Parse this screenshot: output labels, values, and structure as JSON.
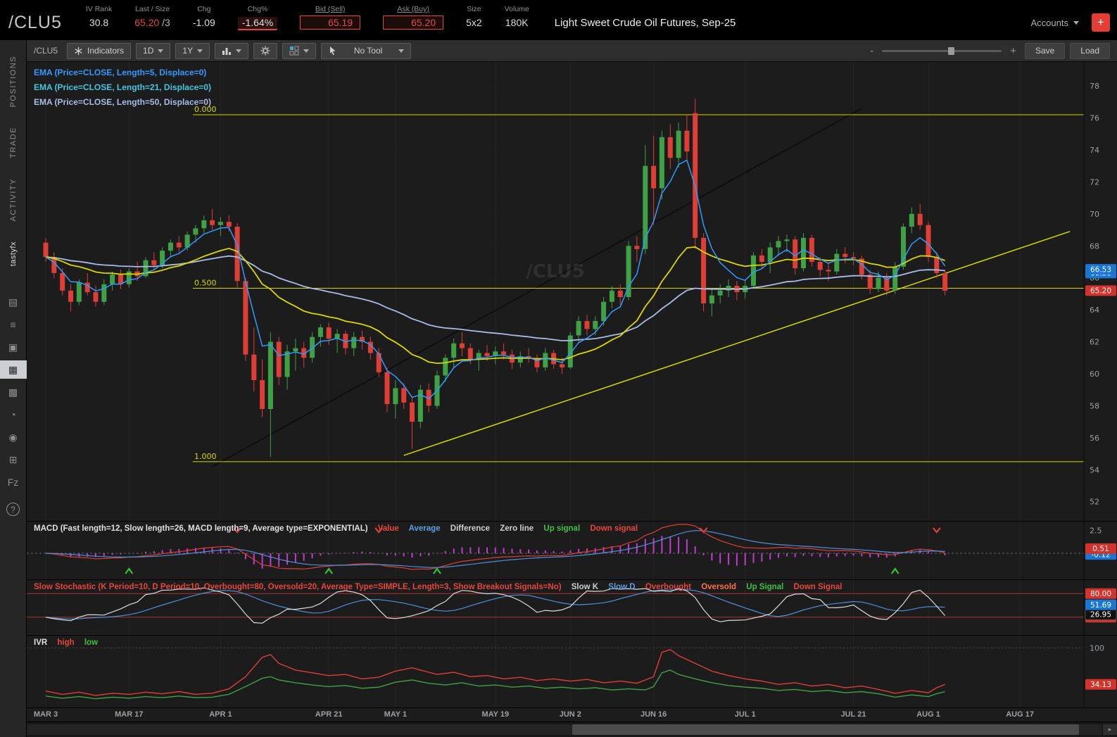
{
  "header": {
    "symbol": "/CLU5",
    "iv_rank": {
      "label": "IV Rank",
      "value": "30.8"
    },
    "last": {
      "label": "Last / Size",
      "value": "65.20",
      "size": " /3"
    },
    "chg": {
      "label": "Chg",
      "value": "-1.09"
    },
    "chg_pct": {
      "label": "Chg%",
      "value": "-1.64%"
    },
    "bid": {
      "label": "Bid (Sell)",
      "value": "65.19"
    },
    "ask": {
      "label": "Ask (Buy)",
      "value": "65.20"
    },
    "size": {
      "label": "Size",
      "value": "5x2"
    },
    "volume": {
      "label": "Volume",
      "value": "180K"
    },
    "description": "Light Sweet Crude Oil Futures, Sep-25",
    "accounts_label": "Accounts",
    "add_button": "+"
  },
  "sidebar": {
    "tabs": [
      {
        "label": "POSITIONS",
        "name": "tab-positions"
      },
      {
        "label": "TRADE",
        "name": "tab-trade"
      },
      {
        "label": "ACTIVITY",
        "name": "tab-activity"
      },
      {
        "label": "tastyfx",
        "name": "tab-tastyfx"
      }
    ],
    "icons": [
      {
        "glyph": "▤",
        "name": "watchlist-icon",
        "active": false
      },
      {
        "glyph": "≡",
        "name": "orders-icon",
        "active": false
      },
      {
        "glyph": "▣",
        "name": "journal-icon",
        "active": false
      },
      {
        "glyph": "▦",
        "name": "chart-icon",
        "active": true
      },
      {
        "glyph": "▩",
        "name": "layout-icon",
        "active": false
      },
      {
        "glyph": "◔",
        "name": "history-icon",
        "active": false
      },
      {
        "glyph": "◉",
        "name": "follow-traders-icon",
        "active": false
      },
      {
        "glyph": "⊞",
        "name": "calendar-icon",
        "active": false
      },
      {
        "glyph": "Fz",
        "name": "futures-icon",
        "active": false
      }
    ],
    "help_label": "?"
  },
  "toolbar": {
    "symbol": "/CLU5",
    "indicators_label": "Indicators",
    "timeframe": "1D",
    "range": "1Y",
    "tool_label": "No Tool",
    "zoom_minus": "-",
    "zoom_plus": "+",
    "save_label": "Save",
    "load_label": "Load"
  },
  "chart": {
    "ema_labels": [
      "EMA (Price=CLOSE, Length=5, Displace=0)",
      "EMA (Price=CLOSE, Length=21, Displace=0)",
      "EMA (Price=CLOSE, Length=50, Displace=0)"
    ],
    "watermark": "/CLU5",
    "y_ticks": [
      78,
      76,
      74,
      72,
      70,
      68,
      66,
      64,
      62,
      60,
      58,
      56,
      54,
      52
    ],
    "price_badges": [
      {
        "text": "66.30",
        "value": 66.3,
        "color": "blue"
      },
      {
        "text": "66.53",
        "value": 66.53,
        "color": "blue"
      },
      {
        "text": "65.20",
        "value": 65.2,
        "color": "red"
      }
    ]
  },
  "macd": {
    "label": "MACD (Fast length=12, Slow length=26, MACD length=9, Average type=EXPONENTIAL)",
    "legend": {
      "value": "Value",
      "average": "Average",
      "difference": "Difference",
      "zero": "Zero line",
      "up": "Up signal",
      "down": "Down signal"
    },
    "tick": "2.5",
    "badges": [
      {
        "text": "-0.12",
        "value": -0.12,
        "color": "blue"
      },
      {
        "text": "0.51",
        "value": 0.51,
        "color": "red"
      }
    ],
    "up_signals": [
      10,
      34,
      47,
      102
    ],
    "down_signals": [
      23,
      40,
      79,
      107
    ]
  },
  "stoch": {
    "label": "Slow Stochastic (K Period=10, D Period=10, Overbought=80, Oversold=20, Average Type=SIMPLE, Length=3, Show Breakout Signals=No)",
    "legend": {
      "k": "Slow K",
      "d": "Slow D",
      "overbought": "Overbought",
      "oversold": "Oversold",
      "up": "Up Signal",
      "down": "Down Signal"
    },
    "overbought": 80,
    "oversold": 20,
    "badges": [
      {
        "text": "20.00",
        "value": 20,
        "color": "red"
      },
      {
        "text": "26.95",
        "value": 26.95,
        "color": "dark"
      },
      {
        "text": "51.69",
        "value": 51.69,
        "color": "blue"
      },
      {
        "text": "80.00",
        "value": 80,
        "color": "red"
      }
    ]
  },
  "ivr": {
    "label": "IVR",
    "legend": {
      "high": "high",
      "low": "low"
    },
    "tick": "100",
    "badge": {
      "text": "34.13",
      "value": 34.13,
      "color": "red"
    }
  },
  "x_axis": {
    "labels": [
      {
        "text": "MAR 3",
        "day": 0
      },
      {
        "text": "MAR 17",
        "day": 10
      },
      {
        "text": "APR 1",
        "day": 21
      },
      {
        "text": "APR 21",
        "day": 34
      },
      {
        "text": "MAY 1",
        "day": 42
      },
      {
        "text": "MAY 19",
        "day": 54
      },
      {
        "text": "JUN 2",
        "day": 63
      },
      {
        "text": "JUN 16",
        "day": 73
      },
      {
        "text": "JUL 1",
        "day": 84
      },
      {
        "text": "JUL 21",
        "day": 97
      },
      {
        "text": "AUG 1",
        "day": 106
      },
      {
        "text": "AUG 17",
        "day": 117
      }
    ]
  },
  "chart_data": {
    "type": "candlestick",
    "symbol": "/CLU5",
    "title": "Light Sweet Crude Oil Futures, Sep-25",
    "timeframe": "1D",
    "range": "1Y",
    "ylim": [
      50.8,
      79.5
    ],
    "ema_lengths": [
      5,
      21,
      50
    ],
    "candles": [
      [
        68.2,
        68.5,
        67.0,
        67.3
      ],
      [
        67.3,
        67.6,
        66.0,
        66.3
      ],
      [
        66.3,
        66.6,
        64.9,
        65.2
      ],
      [
        65.2,
        65.6,
        63.9,
        64.5
      ],
      [
        64.5,
        65.9,
        64.3,
        65.7
      ],
      [
        65.7,
        66.3,
        64.9,
        65.1
      ],
      [
        65.1,
        65.5,
        64.2,
        64.5
      ],
      [
        64.5,
        65.9,
        64.3,
        65.6
      ],
      [
        65.6,
        66.4,
        65.2,
        66.2
      ],
      [
        66.2,
        66.5,
        65.3,
        65.6
      ],
      [
        65.6,
        66.6,
        65.4,
        66.4
      ],
      [
        66.4,
        67.0,
        65.8,
        66.1
      ],
      [
        66.1,
        67.3,
        66.0,
        67.1
      ],
      [
        67.1,
        67.6,
        66.5,
        66.8
      ],
      [
        66.8,
        67.9,
        66.6,
        67.7
      ],
      [
        67.7,
        68.4,
        67.3,
        68.2
      ],
      [
        68.2,
        68.6,
        67.6,
        67.9
      ],
      [
        67.9,
        68.9,
        67.7,
        68.7
      ],
      [
        68.7,
        69.3,
        68.2,
        69.1
      ],
      [
        69.1,
        69.9,
        68.8,
        69.6
      ],
      [
        69.6,
        70.3,
        69.0,
        69.3
      ],
      [
        69.3,
        69.8,
        68.6,
        69.5
      ],
      [
        69.5,
        69.9,
        68.9,
        69.2
      ],
      [
        69.2,
        69.4,
        65.4,
        65.8
      ],
      [
        65.8,
        66.0,
        60.8,
        61.2
      ],
      [
        61.2,
        62.9,
        58.9,
        59.6
      ],
      [
        59.6,
        60.9,
        57.3,
        57.8
      ],
      [
        57.8,
        62.6,
        54.8,
        62.0
      ],
      [
        62.0,
        62.3,
        59.3,
        59.8
      ],
      [
        59.8,
        61.8,
        59.0,
        61.4
      ],
      [
        61.4,
        62.2,
        60.2,
        61.6
      ],
      [
        61.6,
        62.0,
        60.4,
        61.0
      ],
      [
        61.0,
        62.6,
        60.7,
        62.3
      ],
      [
        62.3,
        63.1,
        61.7,
        62.9
      ],
      [
        62.9,
        63.2,
        61.8,
        62.2
      ],
      [
        62.2,
        62.8,
        61.3,
        62.5
      ],
      [
        62.5,
        62.7,
        61.2,
        61.6
      ],
      [
        61.6,
        62.6,
        61.1,
        62.3
      ],
      [
        62.3,
        62.7,
        61.5,
        62.0
      ],
      [
        62.0,
        62.3,
        60.9,
        61.3
      ],
      [
        61.3,
        61.6,
        59.8,
        60.1
      ],
      [
        60.1,
        60.4,
        57.6,
        58.1
      ],
      [
        58.1,
        59.6,
        57.2,
        59.1
      ],
      [
        59.1,
        59.4,
        57.8,
        58.2
      ],
      [
        58.2,
        58.5,
        55.3,
        57.0
      ],
      [
        57.0,
        59.3,
        56.6,
        59.0
      ],
      [
        59.0,
        59.4,
        57.6,
        58.0
      ],
      [
        58.0,
        60.2,
        57.8,
        59.9
      ],
      [
        59.9,
        61.2,
        59.5,
        61.0
      ],
      [
        61.0,
        62.2,
        60.4,
        61.9
      ],
      [
        61.9,
        62.6,
        61.1,
        61.6
      ],
      [
        61.6,
        61.9,
        60.6,
        60.9
      ],
      [
        60.9,
        61.5,
        60.2,
        61.3
      ],
      [
        61.3,
        61.8,
        60.8,
        61.1
      ],
      [
        61.1,
        61.7,
        60.6,
        61.4
      ],
      [
        61.4,
        61.9,
        60.9,
        61.2
      ],
      [
        61.2,
        61.5,
        60.3,
        60.7
      ],
      [
        60.7,
        61.4,
        60.4,
        61.1
      ],
      [
        61.1,
        61.6,
        60.7,
        61.0
      ],
      [
        61.0,
        61.2,
        60.1,
        60.4
      ],
      [
        60.4,
        61.6,
        60.2,
        61.3
      ],
      [
        61.3,
        61.5,
        60.3,
        60.6
      ],
      [
        60.6,
        61.0,
        60.0,
        60.4
      ],
      [
        60.4,
        62.6,
        60.3,
        62.4
      ],
      [
        62.4,
        63.6,
        62.0,
        63.3
      ],
      [
        63.3,
        63.7,
        62.4,
        62.8
      ],
      [
        62.8,
        63.6,
        62.4,
        63.3
      ],
      [
        63.3,
        64.8,
        63.0,
        64.5
      ],
      [
        64.5,
        65.5,
        64.1,
        65.2
      ],
      [
        65.2,
        65.6,
        64.3,
        64.8
      ],
      [
        64.8,
        68.3,
        64.6,
        68.0
      ],
      [
        68.0,
        68.6,
        67.0,
        67.8
      ],
      [
        67.8,
        74.3,
        67.5,
        73.0
      ],
      [
        73.0,
        74.9,
        69.3,
        71.6
      ],
      [
        71.6,
        75.2,
        70.9,
        74.8
      ],
      [
        74.8,
        75.6,
        72.8,
        73.5
      ],
      [
        73.5,
        75.7,
        72.9,
        75.2
      ],
      [
        75.2,
        76.2,
        73.3,
        73.9
      ],
      [
        76.3,
        77.2,
        67.8,
        68.5
      ],
      [
        68.5,
        68.8,
        63.9,
        64.4
      ],
      [
        64.4,
        65.3,
        63.6,
        64.9
      ],
      [
        64.9,
        65.6,
        64.4,
        65.2
      ],
      [
        65.2,
        65.9,
        64.8,
        65.5
      ],
      [
        65.5,
        65.8,
        64.6,
        65.1
      ],
      [
        65.1,
        65.8,
        64.7,
        65.5
      ],
      [
        65.5,
        67.6,
        65.3,
        67.4
      ],
      [
        67.4,
        67.8,
        66.6,
        67.0
      ],
      [
        67.0,
        68.2,
        66.3,
        67.9
      ],
      [
        67.9,
        68.6,
        67.4,
        68.3
      ],
      [
        68.3,
        68.7,
        67.6,
        68.4
      ],
      [
        68.4,
        68.6,
        66.2,
        66.6
      ],
      [
        66.6,
        68.8,
        66.4,
        68.5
      ],
      [
        68.5,
        68.7,
        66.7,
        67.0
      ],
      [
        67.0,
        67.3,
        66.1,
        66.5
      ],
      [
        66.5,
        66.9,
        65.8,
        66.4
      ],
      [
        66.4,
        67.8,
        66.2,
        67.5
      ],
      [
        67.5,
        67.9,
        66.9,
        67.3
      ],
      [
        67.3,
        67.6,
        66.8,
        67.2
      ],
      [
        67.2,
        67.4,
        65.9,
        66.2
      ],
      [
        66.2,
        66.5,
        65.0,
        65.3
      ],
      [
        65.3,
        66.4,
        65.1,
        66.0
      ],
      [
        66.0,
        66.3,
        64.9,
        65.2
      ],
      [
        65.2,
        67.0,
        65.0,
        66.7
      ],
      [
        66.7,
        69.4,
        66.5,
        69.2
      ],
      [
        69.2,
        70.4,
        68.8,
        70.0
      ],
      [
        70.0,
        70.6,
        69.0,
        69.3
      ],
      [
        69.3,
        69.5,
        67.0,
        67.3
      ],
      [
        67.3,
        67.6,
        66.0,
        66.3
      ],
      [
        66.3,
        66.5,
        64.9,
        65.2
      ]
    ],
    "fib_levels": [
      {
        "label": "0.000",
        "value": 76.2
      },
      {
        "label": "0.500",
        "value": 65.35
      },
      {
        "label": "1.000",
        "value": 54.5
      }
    ],
    "trendlines": [
      {
        "from": [
          20,
          54.2
        ],
        "to": [
          98,
          76.6
        ],
        "color": "#0b0b0b",
        "width": 1.5
      },
      {
        "from": [
          43,
          54.9
        ],
        "to": [
          123,
          68.9
        ],
        "color": "#d6d600",
        "width": 1.5
      }
    ],
    "ivr_high_keyframes": [
      [
        0,
        22
      ],
      [
        2,
        16
      ],
      [
        4,
        20
      ],
      [
        6,
        14
      ],
      [
        8,
        18
      ],
      [
        10,
        16
      ],
      [
        12,
        20
      ],
      [
        14,
        17
      ],
      [
        16,
        21
      ],
      [
        18,
        16
      ],
      [
        20,
        18
      ],
      [
        22,
        26
      ],
      [
        24,
        48
      ],
      [
        26,
        83
      ],
      [
        27,
        88
      ],
      [
        28,
        72
      ],
      [
        30,
        60
      ],
      [
        32,
        55
      ],
      [
        34,
        50
      ],
      [
        36,
        52
      ],
      [
        38,
        44
      ],
      [
        40,
        47
      ],
      [
        42,
        58
      ],
      [
        44,
        64
      ],
      [
        45,
        60
      ],
      [
        47,
        52
      ],
      [
        49,
        56
      ],
      [
        51,
        48
      ],
      [
        53,
        50
      ],
      [
        55,
        44
      ],
      [
        57,
        47
      ],
      [
        59,
        41
      ],
      [
        61,
        44
      ],
      [
        63,
        40
      ],
      [
        65,
        43
      ],
      [
        67,
        37
      ],
      [
        69,
        40
      ],
      [
        71,
        36
      ],
      [
        73,
        48
      ],
      [
        74,
        92
      ],
      [
        75,
        97
      ],
      [
        76,
        86
      ],
      [
        78,
        72
      ],
      [
        80,
        58
      ],
      [
        82,
        50
      ],
      [
        84,
        44
      ],
      [
        86,
        40
      ],
      [
        88,
        34
      ],
      [
        90,
        37
      ],
      [
        92,
        31
      ],
      [
        94,
        34
      ],
      [
        96,
        28
      ],
      [
        98,
        31
      ],
      [
        100,
        25
      ],
      [
        102,
        18
      ],
      [
        104,
        23
      ],
      [
        106,
        19
      ],
      [
        107,
        28
      ],
      [
        108,
        34
      ]
    ],
    "ivr_low_keyframes": [
      [
        0,
        13
      ],
      [
        2,
        9
      ],
      [
        4,
        12
      ],
      [
        6,
        8
      ],
      [
        8,
        11
      ],
      [
        10,
        9
      ],
      [
        12,
        12
      ],
      [
        14,
        10
      ],
      [
        16,
        13
      ],
      [
        18,
        10
      ],
      [
        20,
        11
      ],
      [
        22,
        16
      ],
      [
        24,
        30
      ],
      [
        26,
        45
      ],
      [
        27,
        48
      ],
      [
        28,
        42
      ],
      [
        30,
        37
      ],
      [
        32,
        33
      ],
      [
        34,
        30
      ],
      [
        36,
        32
      ],
      [
        38,
        27
      ],
      [
        40,
        29
      ],
      [
        42,
        38
      ],
      [
        44,
        42
      ],
      [
        46,
        36
      ],
      [
        48,
        33
      ],
      [
        50,
        37
      ],
      [
        52,
        31
      ],
      [
        54,
        33
      ],
      [
        56,
        29
      ],
      [
        58,
        31
      ],
      [
        60,
        27
      ],
      [
        62,
        29
      ],
      [
        64,
        26
      ],
      [
        66,
        28
      ],
      [
        68,
        24
      ],
      [
        70,
        26
      ],
      [
        72,
        24
      ],
      [
        73,
        30
      ],
      [
        74,
        55
      ],
      [
        75,
        60
      ],
      [
        76,
        52
      ],
      [
        78,
        44
      ],
      [
        80,
        37
      ],
      [
        82,
        32
      ],
      [
        84,
        29
      ],
      [
        86,
        27
      ],
      [
        88,
        23
      ],
      [
        90,
        25
      ],
      [
        92,
        21
      ],
      [
        94,
        23
      ],
      [
        96,
        19
      ],
      [
        98,
        21
      ],
      [
        100,
        17
      ],
      [
        102,
        11
      ],
      [
        104,
        15
      ],
      [
        106,
        12
      ],
      [
        107,
        17
      ],
      [
        108,
        21
      ]
    ],
    "colors": {
      "up": "#3fa046",
      "down": "#de3e35",
      "ema5": "#2f9bff",
      "ema21": "#d8d800",
      "ema50": "#a9bce8",
      "fib": "#d6d600",
      "macd_hist": "#c13ad1",
      "macd_value": "#de3e35",
      "macd_avg": "#4f8fd9",
      "stoch_k": "#dcdcdc",
      "stoch_d": "#4f8fd9",
      "stoch_band": "#a83232",
      "ivr_high": "#de3e35",
      "ivr_low": "#3fa046",
      "badge_blue": "#1976d2",
      "badge_red": "#d3332b",
      "up_signal": "#35c135",
      "down_signal": "#de3e35"
    }
  }
}
